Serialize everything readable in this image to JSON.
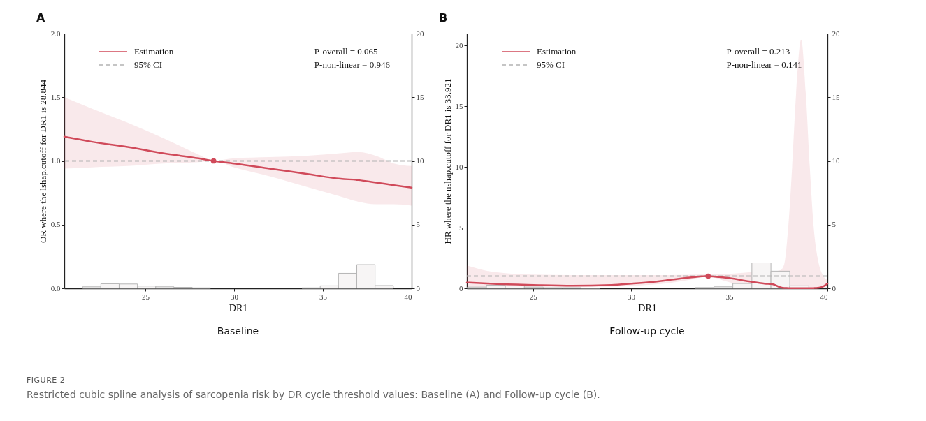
{
  "chart_data": [
    {
      "type": "line",
      "title": "A",
      "subtitle": "Baseline",
      "xlabel": "DR1",
      "ylabel": "OR where the lshap.cutoff for DR1 is 28.844",
      "legend": "top left",
      "xlim": [
        20.43,
        40
      ],
      "xticks": [
        25,
        30,
        35,
        40
      ],
      "ylim": [
        0,
        2
      ],
      "yticks": [
        {
          "value": 0,
          "label": "0.0"
        },
        {
          "value": 0.5,
          "label": "0.5"
        },
        {
          "value": 1,
          "label": "1.0"
        },
        {
          "value": 1.5,
          "label": "1.5"
        },
        {
          "value": 2,
          "label": "2.0"
        }
      ],
      "y2lim": [
        0,
        20
      ],
      "y2ticks": [
        0,
        5,
        10,
        15,
        20
      ],
      "ref_lines": [
        {
          "axis": "y",
          "value": 1,
          "label": "95% CI",
          "color": "#b3b3b3",
          "line_style": "dashed"
        }
      ],
      "annotations": [
        "P-overall = 0.065",
        "P-non-linear = 0.946",
        "FIGURE 2",
        "Restricted cubic spline analysis of sarcopenia risk by DR cycle threshold values: Baseline (A) and Follow-up cycle (B)."
      ],
      "series": [
        {
          "name": "Estimation",
          "color": "#d04a5a",
          "x": [
            20.43,
            22,
            24,
            26,
            28,
            28.844,
            30,
            32,
            34,
            36,
            37,
            38,
            39,
            40
          ],
          "values": [
            1.19,
            1.15,
            1.11,
            1.06,
            1.02,
            1.0,
            0.98,
            0.94,
            0.9,
            0.86,
            0.85,
            0.83,
            0.81,
            0.79
          ],
          "lower": [
            0.94,
            0.95,
            0.96,
            0.98,
            0.99,
            1.0,
            0.95,
            0.88,
            0.8,
            0.72,
            0.68,
            0.66,
            0.66,
            0.65
          ],
          "upper": [
            1.5,
            1.41,
            1.3,
            1.18,
            1.05,
            1.0,
            1.02,
            1.03,
            1.04,
            1.06,
            1.07,
            1.04,
            0.98,
            0.96
          ]
        },
        {
          "type": "scatter",
          "color": "#d04a5a",
          "x": [
            28.844
          ],
          "values": [
            1
          ]
        },
        {
          "type": "histogram",
          "axis": "y2",
          "color": "#f7f5f5",
          "bins": [
            21.46,
            22.49,
            23.52,
            24.55,
            25.58,
            26.61,
            27.64,
            28.67,
            29.7,
            30.73,
            31.76,
            32.79,
            33.82,
            34.85,
            35.88,
            36.91,
            37.94,
            38.97
          ],
          "values": [
            0.12,
            0.36,
            0.34,
            0.18,
            0.12,
            0.08,
            0.04,
            0,
            0,
            0,
            0,
            0,
            0.04,
            0.2,
            1.18,
            1.86,
            0.22
          ]
        }
      ]
    },
    {
      "type": "line",
      "title": "B",
      "subtitle": "Follow-up cycle",
      "xlabel": "DR1",
      "ylabel": "HR where the nshap.cutoff for DR1 is 33.921",
      "legend": "top left",
      "xlim": [
        21.63,
        40
      ],
      "xticks": [
        25,
        30,
        35,
        40
      ],
      "ylim": [
        0,
        21
      ],
      "yticks": [
        0,
        5,
        10,
        15,
        20
      ],
      "y2lim": [
        0,
        20
      ],
      "y2ticks": [
        0,
        5,
        10,
        15,
        20
      ],
      "ref_lines": [
        {
          "axis": "y",
          "value": 1,
          "label": "95% CI",
          "color": "#b3b3b3",
          "line_style": "dashed"
        }
      ],
      "annotations": [
        "P-overall = 0.213",
        "P-non-linear = 0.141"
      ],
      "series": [
        {
          "name": "Estimation",
          "color": "#d04a5a",
          "x": [
            21.63,
            23,
            25,
            27,
            29,
            30,
            31,
            32,
            33,
            33.921,
            34.5,
            35,
            36,
            36.8,
            37.2,
            37.6,
            37.8,
            38,
            38.2,
            38.4,
            38.66,
            38.9,
            39.1,
            39.3,
            39.5,
            39.7,
            40
          ],
          "values": [
            0.48,
            0.37,
            0.28,
            0.22,
            0.28,
            0.39,
            0.52,
            0.7,
            0.89,
            1.0,
            0.93,
            0.85,
            0.57,
            0.39,
            0.35,
            0.09,
            0.03,
            0.02,
            0.01,
            0.01,
            0.01,
            0.01,
            0.01,
            0.02,
            0.04,
            0.1,
            0.39
          ],
          "lower": [
            0.1,
            0.1,
            0.1,
            0.1,
            0.15,
            0.2,
            0.3,
            0.45,
            0.7,
            1.0,
            0.75,
            0.5,
            0.2,
            0.1,
            0.05,
            0,
            0,
            0,
            0,
            0,
            0,
            0,
            0,
            0,
            0,
            0,
            0
          ],
          "upper": [
            1.89,
            1.35,
            1.13,
            1.09,
            1.09,
            1.09,
            1.09,
            1.1,
            1.12,
            1.13,
            1.17,
            1.2,
            1.33,
            1.4,
            1.4,
            1.5,
            2,
            5,
            10,
            16,
            20.5,
            16,
            10,
            5,
            2.5,
            1.3,
            0.7
          ]
        },
        {
          "type": "scatter",
          "color": "#d04a5a",
          "x": [
            33.921
          ],
          "values": [
            1
          ]
        },
        {
          "type": "histogram",
          "axis": "y2",
          "color": "#f7f5f5",
          "bins": [
            21.66,
            22.63,
            23.59,
            24.56,
            25.52,
            26.49,
            27.46,
            28.42,
            29.39,
            30.35,
            31.32,
            32.29,
            33.25,
            34.22,
            35.18,
            36.15,
            37.12,
            38.08,
            39.05
          ],
          "values": [
            0.1,
            0.25,
            0.2,
            0.1,
            0.05,
            0.05,
            0.02,
            0,
            0,
            0,
            0,
            0,
            0.06,
            0.12,
            0.38,
            2.0,
            1.35,
            0.2
          ]
        }
      ]
    }
  ]
}
